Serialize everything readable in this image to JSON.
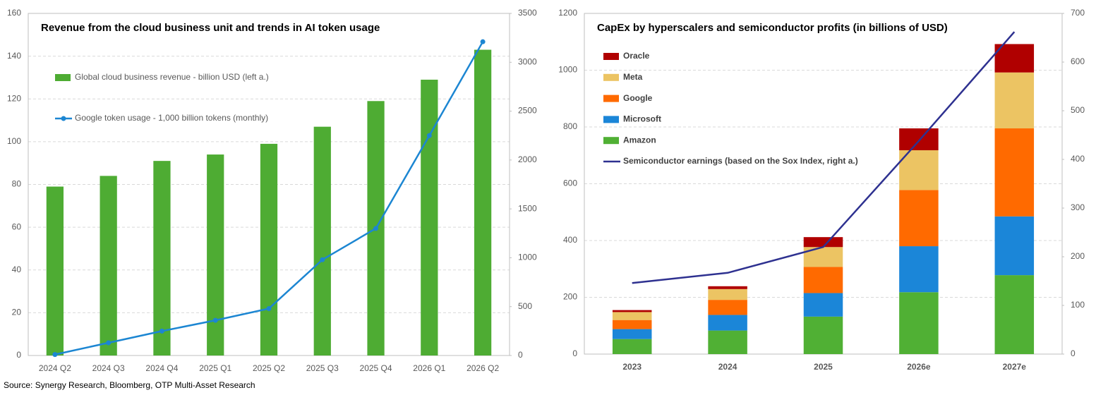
{
  "chart_data": [
    {
      "type": "bar",
      "title": "Revenue from the cloud business unit and trends in AI token usage",
      "categories": [
        "2024 Q2",
        "2024 Q3",
        "2024 Q4",
        "2025 Q1",
        "2025 Q2",
        "2025 Q3",
        "2025 Q4",
        "2026 Q1",
        "2026 Q2"
      ],
      "series": [
        {
          "name": "Global cloud business revenue - billion USD (left a.)",
          "type": "bar",
          "color": "#4eac33",
          "values": [
            79,
            84,
            91,
            94,
            99,
            107,
            119,
            129,
            143
          ]
        },
        {
          "name": "Google token usage - 1,000 billion tokens (monthly)",
          "type": "line",
          "axis": "y2",
          "color": "#1c86d2",
          "values": [
            10,
            130,
            250,
            360,
            480,
            980,
            1300,
            2250,
            3210
          ]
        }
      ],
      "stacked": false,
      "ylim": [
        0,
        160
      ],
      "yticks": [
        0,
        20,
        40,
        60,
        80,
        100,
        120,
        140,
        160
      ],
      "y2lim": [
        0,
        3500
      ],
      "y2ticks": [
        0,
        500,
        1000,
        1500,
        2000,
        2500,
        3000,
        3500
      ],
      "grid": true,
      "legend": "upper left"
    },
    {
      "type": "bar",
      "title": "CapEx by hyperscalers and semiconductor profits (in billions of USD)",
      "categories": [
        "2023",
        "2024",
        "2025",
        "2026e",
        "2027e"
      ],
      "series": [
        {
          "name": "Amazon",
          "type": "bar",
          "color": "#50b034",
          "values": [
            53,
            83,
            132,
            218,
            278
          ]
        },
        {
          "name": "Microsoft",
          "type": "bar",
          "color": "#1b86d8",
          "values": [
            35,
            55,
            83,
            162,
            207
          ]
        },
        {
          "name": "Google",
          "type": "bar",
          "color": "#ff6a00",
          "values": [
            32,
            53,
            92,
            198,
            310
          ]
        },
        {
          "name": "Meta",
          "type": "bar",
          "color": "#ecc463",
          "values": [
            28,
            38,
            70,
            140,
            197
          ]
        },
        {
          "name": "Oracle",
          "type": "bar",
          "color": "#b00000",
          "values": [
            7,
            10,
            35,
            77,
            100
          ]
        },
        {
          "name": "Semiconductor earnings (based on the Sox Index, right a.)",
          "type": "line",
          "axis": "y2",
          "color": "#2e3190",
          "values": [
            146,
            167,
            220,
            438,
            662
          ]
        }
      ],
      "stacked": true,
      "ylim": [
        0,
        1200
      ],
      "yticks": [
        0,
        200,
        400,
        600,
        800,
        1000,
        1200
      ],
      "y2lim": [
        0,
        700
      ],
      "y2ticks": [
        0,
        100,
        200,
        300,
        400,
        500,
        600,
        700
      ],
      "grid": true,
      "legend": "upper left"
    }
  ],
  "source": "Source: Synergy Research, Bloomberg, OTP Multi-Asset Research"
}
